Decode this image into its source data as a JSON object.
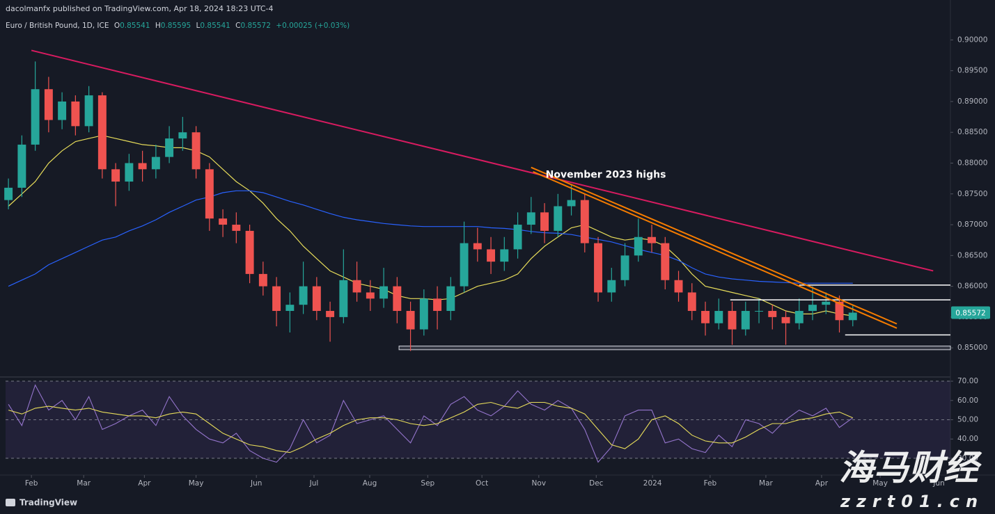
{
  "header": {
    "publisher": "dacolmanfx published on TradingView.com, Apr 18, 2024 18:23 UTC-4",
    "symbol": "Euro / British Pound, 1D, ICE",
    "ohlc": [
      {
        "label": "O",
        "value": "0.85541"
      },
      {
        "label": "H",
        "value": "0.85595"
      },
      {
        "label": "L",
        "value": "0.85541"
      },
      {
        "label": "C",
        "value": "0.85572"
      }
    ],
    "change": "+0.00025 (+0.03%)"
  },
  "footer": {
    "brand": "TradingView"
  },
  "watermark": {
    "title": "海马财经",
    "url": "zzrt01.cn"
  },
  "chart_data": [
    {
      "type": "candlestick",
      "xlim": [
        -13.5,
        480
      ],
      "ylim": [
        0.8455,
        0.9014
      ],
      "yticks": [
        {
          "value": 0.85,
          "label": "0.85000"
        },
        {
          "value": 0.855,
          "label": "0.85500"
        },
        {
          "value": 0.86,
          "label": "0.86000"
        },
        {
          "value": 0.865,
          "label": "0.86500"
        },
        {
          "value": 0.87,
          "label": "0.87000"
        },
        {
          "value": 0.875,
          "label": "0.87500"
        },
        {
          "value": 0.88,
          "label": "0.88000"
        },
        {
          "value": 0.885,
          "label": "0.88500"
        },
        {
          "value": 0.89,
          "label": "0.89000"
        },
        {
          "value": 0.895,
          "label": "0.89500"
        },
        {
          "value": 0.9,
          "label": "0.90000"
        }
      ],
      "colors": {
        "up": "#26a69a",
        "down": "#ef5350"
      },
      "x": [
        -12,
        -5,
        2,
        9,
        16,
        23,
        30,
        37,
        44,
        51,
        58,
        65,
        72,
        79,
        86,
        93,
        100,
        107,
        114,
        121,
        128,
        135,
        142,
        149,
        156,
        163,
        170,
        177,
        184,
        191,
        198,
        205,
        212,
        219,
        226,
        233,
        240,
        247,
        254,
        261,
        268,
        275,
        282,
        289,
        296,
        303,
        310,
        317,
        324,
        331,
        338,
        345,
        352,
        359,
        366,
        373,
        380,
        387,
        394,
        401,
        408,
        415,
        422,
        429
      ],
      "open": [
        0.874,
        0.876,
        0.883,
        0.892,
        0.887,
        0.89,
        0.886,
        0.891,
        0.879,
        0.877,
        0.88,
        0.879,
        0.881,
        0.884,
        0.885,
        0.879,
        0.871,
        0.87,
        0.869,
        0.862,
        0.86,
        0.856,
        0.857,
        0.86,
        0.856,
        0.855,
        0.861,
        0.859,
        0.858,
        0.86,
        0.856,
        0.853,
        0.858,
        0.856,
        0.86,
        0.867,
        0.866,
        0.864,
        0.866,
        0.87,
        0.872,
        0.869,
        0.873,
        0.874,
        0.867,
        0.859,
        0.861,
        0.865,
        0.868,
        0.867,
        0.861,
        0.859,
        0.856,
        0.854,
        0.856,
        0.853,
        0.856,
        0.856,
        0.855,
        0.854,
        0.856,
        0.857,
        0.8575,
        0.8545
      ],
      "high": [
        0.8775,
        0.8845,
        0.8965,
        0.894,
        0.8915,
        0.891,
        0.8925,
        0.8915,
        0.88,
        0.8815,
        0.882,
        0.883,
        0.886,
        0.8875,
        0.886,
        0.88,
        0.8725,
        0.872,
        0.87,
        0.864,
        0.8615,
        0.859,
        0.864,
        0.8615,
        0.8575,
        0.866,
        0.864,
        0.861,
        0.863,
        0.8615,
        0.8575,
        0.8595,
        0.86,
        0.8615,
        0.8705,
        0.8695,
        0.868,
        0.868,
        0.872,
        0.8745,
        0.8735,
        0.875,
        0.8765,
        0.875,
        0.868,
        0.863,
        0.867,
        0.871,
        0.87,
        0.868,
        0.8625,
        0.8605,
        0.8575,
        0.858,
        0.8575,
        0.8575,
        0.858,
        0.857,
        0.856,
        0.858,
        0.86,
        0.859,
        0.8585,
        0.857
      ],
      "low": [
        0.8725,
        0.8745,
        0.882,
        0.885,
        0.8855,
        0.8845,
        0.885,
        0.8775,
        0.873,
        0.8755,
        0.877,
        0.8775,
        0.88,
        0.882,
        0.8775,
        0.869,
        0.868,
        0.867,
        0.8605,
        0.8585,
        0.8535,
        0.8525,
        0.8555,
        0.8545,
        0.851,
        0.854,
        0.8575,
        0.856,
        0.8565,
        0.854,
        0.8495,
        0.852,
        0.853,
        0.8545,
        0.859,
        0.864,
        0.862,
        0.8625,
        0.8645,
        0.8685,
        0.867,
        0.868,
        0.8715,
        0.8655,
        0.8575,
        0.8575,
        0.86,
        0.864,
        0.8655,
        0.8595,
        0.8575,
        0.8545,
        0.852,
        0.853,
        0.8505,
        0.852,
        0.854,
        0.853,
        0.8505,
        0.853,
        0.8545,
        0.8555,
        0.8525,
        0.8535
      ],
      "close": [
        0.876,
        0.883,
        0.892,
        0.887,
        0.89,
        0.886,
        0.891,
        0.879,
        0.877,
        0.88,
        0.879,
        0.881,
        0.884,
        0.885,
        0.879,
        0.871,
        0.87,
        0.869,
        0.862,
        0.86,
        0.856,
        0.857,
        0.86,
        0.856,
        0.855,
        0.861,
        0.859,
        0.858,
        0.86,
        0.856,
        0.853,
        0.858,
        0.856,
        0.86,
        0.867,
        0.866,
        0.864,
        0.866,
        0.87,
        0.872,
        0.869,
        0.873,
        0.874,
        0.867,
        0.859,
        0.861,
        0.865,
        0.868,
        0.867,
        0.861,
        0.859,
        0.856,
        0.854,
        0.856,
        0.853,
        0.856,
        0.856,
        0.855,
        0.854,
        0.856,
        0.857,
        0.8575,
        0.8545,
        0.85572
      ],
      "lines": [
        {
          "color": "#e8dd5a",
          "values": [
            0.873,
            0.875,
            0.877,
            0.88,
            0.882,
            0.8835,
            0.884,
            0.8845,
            0.884,
            0.8835,
            0.883,
            0.8828,
            0.8825,
            0.8825,
            0.882,
            0.881,
            0.879,
            0.877,
            0.8755,
            0.8735,
            0.871,
            0.869,
            0.8665,
            0.8645,
            0.8625,
            0.8615,
            0.8605,
            0.86,
            0.8595,
            0.8585,
            0.858,
            0.858,
            0.8578,
            0.858,
            0.859,
            0.86,
            0.8605,
            0.861,
            0.862,
            0.8645,
            0.8665,
            0.868,
            0.8695,
            0.87,
            0.869,
            0.868,
            0.8675,
            0.8678,
            0.8675,
            0.8665,
            0.8645,
            0.862,
            0.86,
            0.8595,
            0.859,
            0.8585,
            0.858,
            0.857,
            0.856,
            0.8555,
            0.8555,
            0.856,
            0.8555,
            0.8552
          ]
        },
        {
          "color": "#2962ff",
          "values": [
            0.86,
            0.861,
            0.862,
            0.8635,
            0.8645,
            0.8655,
            0.8665,
            0.8675,
            0.868,
            0.869,
            0.8698,
            0.8708,
            0.872,
            0.873,
            0.874,
            0.8745,
            0.8752,
            0.8755,
            0.8755,
            0.8752,
            0.8745,
            0.8738,
            0.8732,
            0.8725,
            0.8718,
            0.8712,
            0.8708,
            0.8705,
            0.8702,
            0.87,
            0.8698,
            0.8697,
            0.8697,
            0.8697,
            0.8697,
            0.8697,
            0.8695,
            0.8694,
            0.8692,
            0.8689,
            0.8687,
            0.8686,
            0.8684,
            0.868,
            0.8676,
            0.8672,
            0.8666,
            0.866,
            0.8655,
            0.865,
            0.8642,
            0.863,
            0.862,
            0.8615,
            0.8612,
            0.861,
            0.8608,
            0.8607,
            0.8606,
            0.8605,
            0.8605,
            0.8605,
            0.8605,
            0.8605
          ]
        }
      ],
      "trendlines": [
        {
          "color": "#d81b60",
          "x": [
            0,
            471
          ],
          "y": [
            0.8983,
            0.8625
          ]
        },
        {
          "color": "#f57c00",
          "x": [
            261,
            452
          ],
          "y": [
            0.8793,
            0.8539
          ]
        },
        {
          "color": "#f57c00",
          "x": [
            262,
            452
          ],
          "y": [
            0.8786,
            0.8532
          ]
        }
      ],
      "levels": [
        {
          "value": 0.8602,
          "x": 401
        },
        {
          "value": 0.8578,
          "x": 365
        },
        {
          "value": 0.8521,
          "x": 425
        }
      ],
      "level_color": "#ffffff",
      "support_zone": {
        "from": 0.8497,
        "to": 0.8503,
        "x": 192,
        "color": "#787b86"
      },
      "annotation": {
        "text": "November 2023 highs",
        "x": 300,
        "y": 0.8781
      },
      "last_price": {
        "value": 0.85572,
        "label": "0.85572"
      }
    },
    {
      "type": "line",
      "xlim": [
        -13.5,
        480
      ],
      "ylim": [
        22.4,
        71.1
      ],
      "yticks": [
        {
          "value": 30,
          "label": "30.00"
        },
        {
          "value": 40,
          "label": "40.00"
        },
        {
          "value": 50,
          "label": "50.00"
        },
        {
          "value": 60,
          "label": "60.00"
        },
        {
          "value": 70,
          "label": "70.00"
        }
      ],
      "xticks": [
        {
          "value": 0,
          "label": "Feb"
        },
        {
          "value": 27.3,
          "label": "Mar"
        },
        {
          "value": 59,
          "label": "Apr"
        },
        {
          "value": 86,
          "label": "May"
        },
        {
          "value": 117.5,
          "label": "Jun"
        },
        {
          "value": 147.6,
          "label": "Jul"
        },
        {
          "value": 176.7,
          "label": "Aug"
        },
        {
          "value": 207,
          "label": "Sep"
        },
        {
          "value": 235.3,
          "label": "Oct"
        },
        {
          "value": 265,
          "label": "Nov"
        },
        {
          "value": 295,
          "label": "Dec"
        },
        {
          "value": 324.4,
          "label": "2024"
        },
        {
          "value": 354.5,
          "label": "Feb"
        },
        {
          "value": 383.6,
          "label": "Mar"
        },
        {
          "value": 412.7,
          "label": "Apr"
        },
        {
          "value": 443.3,
          "label": "May"
        },
        {
          "value": 474,
          "label": "Jun"
        }
      ],
      "band": {
        "from": 30,
        "to": 70,
        "color": "#7e57c2"
      },
      "midline": 50,
      "x": [
        -12,
        -5,
        2,
        9,
        16,
        23,
        30,
        37,
        44,
        51,
        58,
        65,
        72,
        79,
        86,
        93,
        100,
        107,
        114,
        121,
        128,
        135,
        142,
        149,
        156,
        163,
        170,
        177,
        184,
        191,
        198,
        205,
        212,
        219,
        226,
        233,
        240,
        247,
        254,
        261,
        268,
        275,
        282,
        289,
        296,
        303,
        310,
        317,
        324,
        331,
        338,
        345,
        352,
        359,
        366,
        373,
        380,
        387,
        394,
        401,
        408,
        415,
        422,
        429
      ],
      "series": [
        {
          "color": "#9575cd",
          "values": [
            58,
            47,
            68,
            55,
            60,
            50,
            62,
            45,
            48,
            52,
            55,
            47,
            62,
            52,
            45,
            40,
            38,
            43,
            34,
            30,
            28,
            35,
            50,
            38,
            42,
            60,
            48,
            50,
            52,
            45,
            38,
            52,
            47,
            58,
            62,
            55,
            52,
            57,
            65,
            58,
            55,
            60,
            56,
            45,
            28,
            36,
            52,
            55,
            55,
            38,
            40,
            35,
            33,
            42,
            36,
            50,
            48,
            43,
            50,
            55,
            52,
            56,
            46,
            51
          ]
        },
        {
          "color": "#e8dd5a",
          "values": [
            55,
            53,
            56,
            57,
            56,
            55,
            56,
            54,
            53,
            52,
            52,
            51,
            53,
            54,
            53,
            48,
            43,
            40,
            37,
            36,
            34,
            33,
            36,
            40,
            43,
            47,
            50,
            51,
            51,
            50,
            48,
            47,
            48,
            51,
            54,
            58,
            59,
            57,
            56,
            59,
            59,
            57,
            56,
            53,
            45,
            37,
            35,
            40,
            50,
            52,
            48,
            42,
            39,
            38,
            38,
            41,
            45,
            48,
            48,
            50,
            51,
            53,
            54,
            51
          ]
        }
      ]
    }
  ]
}
